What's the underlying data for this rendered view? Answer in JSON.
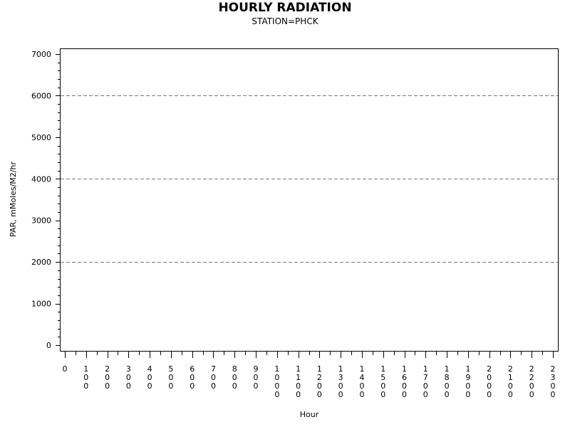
{
  "chart_data": {
    "type": "line",
    "title": "HOURLY RADIATION",
    "subtitle": "STATION=PHCK",
    "xlabel": "Hour",
    "ylabel": "PAR, mMoles/M2/hr",
    "x_ticks": [
      "0",
      "100",
      "200",
      "300",
      "400",
      "500",
      "600",
      "700",
      "800",
      "900",
      "1000",
      "1100",
      "1200",
      "1300",
      "1400",
      "1500",
      "1600",
      "1700",
      "1800",
      "1900",
      "2000",
      "2100",
      "2200",
      "2300"
    ],
    "y_ticks": [
      "0",
      "1000",
      "2000",
      "3000",
      "4000",
      "5000",
      "6000",
      "7000"
    ],
    "xlim": [
      0,
      2300
    ],
    "ylim": [
      0,
      7000
    ],
    "gridlines_y": [
      2000,
      4000,
      6000
    ],
    "grid_style": "dashed",
    "series": []
  }
}
